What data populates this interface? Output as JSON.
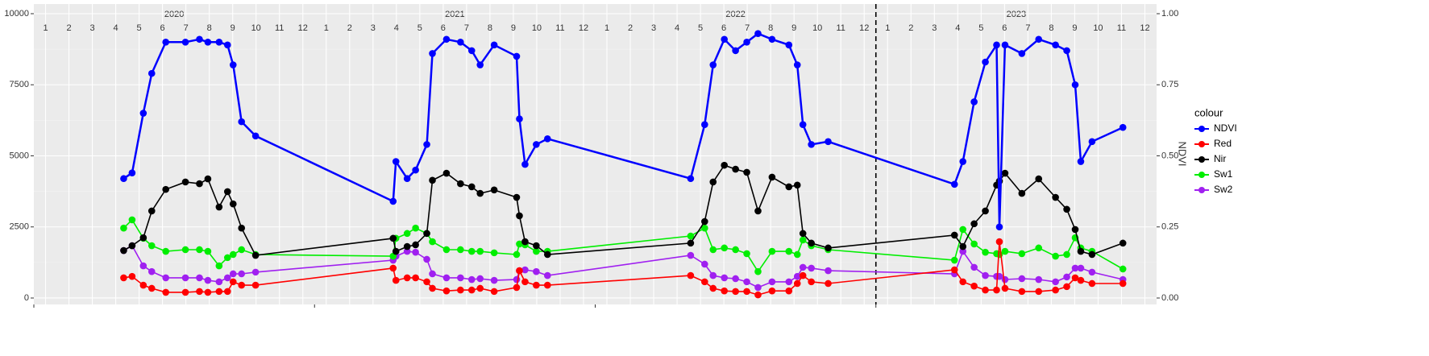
{
  "chart_data": {
    "type": "line",
    "y2_title": "NDVI",
    "legend_title": "colour",
    "year_labels": [
      "2020",
      "2021",
      "2022",
      "2023"
    ],
    "month_labels": [
      "1",
      "2",
      "3",
      "4",
      "5",
      "6",
      "7",
      "8",
      "9",
      "10",
      "11",
      "12"
    ],
    "xlim": [
      2020,
      2024
    ],
    "xticks": [
      2020,
      2021,
      2022,
      2023
    ],
    "vline": 2023,
    "ylim": [
      -227,
      10340
    ],
    "yticks": [
      0,
      2500,
      5000,
      7500,
      10000
    ],
    "y2lim": [
      -0.0227,
      1.034
    ],
    "y2ticks": [
      {
        "value": 0,
        "label": "0.00"
      },
      {
        "value": 0.25,
        "label": "0.25"
      },
      {
        "value": 0.5,
        "label": "0.50"
      },
      {
        "value": 0.75,
        "label": "0.75"
      },
      {
        "value": 1,
        "label": "1.00"
      }
    ],
    "grid": true,
    "legend": "right",
    "x": [
      2020.32,
      2020.35,
      2020.39,
      2020.42,
      2020.47,
      2020.54,
      2020.59,
      2020.62,
      2020.66,
      2020.69,
      2020.71,
      2020.74,
      2020.79,
      2021.28,
      2021.29,
      2021.33,
      2021.36,
      2021.4,
      2021.42,
      2021.47,
      2021.52,
      2021.56,
      2021.59,
      2021.64,
      2021.72,
      2021.73,
      2021.75,
      2021.79,
      2021.83,
      2022.34,
      2022.39,
      2022.42,
      2022.46,
      2022.5,
      2022.54,
      2022.58,
      2022.63,
      2022.69,
      2022.72,
      2022.74,
      2022.77,
      2022.83,
      2023.28,
      2023.31,
      2023.35,
      2023.39,
      2023.43,
      2023.44,
      2023.46,
      2023.52,
      2023.58,
      2023.64,
      2023.68,
      2023.71,
      2023.73,
      2023.77,
      2023.88
    ],
    "series": [
      {
        "name": "NDVI",
        "color": "#0000ff",
        "axis": "y2",
        "values": [
          0.42,
          0.44,
          0.65,
          0.79,
          0.9,
          0.9,
          0.91,
          0.9,
          0.9,
          0.89,
          0.82,
          0.62,
          0.57,
          0.34,
          0.48,
          0.42,
          0.45,
          0.54,
          0.86,
          0.91,
          0.9,
          0.87,
          0.82,
          0.89,
          0.85,
          0.63,
          0.47,
          0.54,
          0.56,
          0.42,
          0.61,
          0.82,
          0.91,
          0.87,
          0.9,
          0.93,
          0.91,
          0.89,
          0.82,
          0.61,
          0.54,
          0.55,
          0.4,
          0.48,
          0.69,
          0.83,
          0.89,
          0.25,
          0.89,
          0.86,
          0.91,
          0.89,
          0.87,
          0.75,
          0.48,
          0.55,
          0.6
        ]
      },
      {
        "name": "Red",
        "color": "#ff0000",
        "values": [
          710,
          760,
          450,
          340,
          200,
          200,
          230,
          200,
          230,
          230,
          570,
          450,
          450,
          1050,
          620,
          710,
          710,
          570,
          340,
          250,
          280,
          280,
          340,
          230,
          370,
          960,
          570,
          450,
          450,
          790,
          570,
          340,
          250,
          230,
          230,
          110,
          250,
          250,
          510,
          790,
          570,
          510,
          990,
          570,
          420,
          280,
          280,
          1980,
          340,
          230,
          230,
          280,
          400,
          710,
          620,
          510,
          510
        ]
      },
      {
        "name": "Nir",
        "color": "#000000",
        "values": [
          1670,
          1840,
          2120,
          3060,
          3820,
          4080,
          4020,
          4190,
          3200,
          3740,
          3310,
          2460,
          1500,
          2100,
          1640,
          1810,
          1870,
          2270,
          4140,
          4390,
          4020,
          3910,
          3680,
          3800,
          3540,
          2890,
          1980,
          1840,
          1530,
          1930,
          2690,
          4080,
          4670,
          4530,
          4420,
          3060,
          4250,
          3910,
          3970,
          2270,
          1930,
          1760,
          2210,
          1810,
          2610,
          3060,
          3970,
          4110,
          4390,
          3680,
          4190,
          3540,
          3120,
          2410,
          1640,
          1530,
          1930
        ]
      },
      {
        "name": "Sw1",
        "color": "#00ee00",
        "values": [
          2460,
          2750,
          2100,
          1840,
          1640,
          1700,
          1700,
          1640,
          1130,
          1420,
          1530,
          1700,
          1530,
          1470,
          2100,
          2270,
          2460,
          2270,
          1980,
          1700,
          1700,
          1640,
          1640,
          1590,
          1530,
          1900,
          1870,
          1640,
          1640,
          2180,
          2460,
          1700,
          1760,
          1700,
          1560,
          930,
          1640,
          1640,
          1530,
          2040,
          1840,
          1700,
          1330,
          2410,
          1900,
          1610,
          1560,
          1530,
          1640,
          1560,
          1760,
          1470,
          1530,
          2120,
          1760,
          1640,
          1020
        ]
      },
      {
        "name": "Sw2",
        "color": "#a020f0",
        "values": [
          1670,
          1840,
          1130,
          930,
          710,
          710,
          710,
          620,
          570,
          710,
          850,
          850,
          910,
          1330,
          1470,
          1640,
          1610,
          1360,
          850,
          710,
          710,
          650,
          680,
          620,
          650,
          960,
          990,
          930,
          790,
          1500,
          1190,
          790,
          710,
          680,
          570,
          370,
          570,
          570,
          760,
          1080,
          1050,
          960,
          850,
          1640,
          1080,
          790,
          760,
          760,
          650,
          680,
          650,
          570,
          740,
          1050,
          1050,
          910,
          650
        ]
      }
    ]
  }
}
